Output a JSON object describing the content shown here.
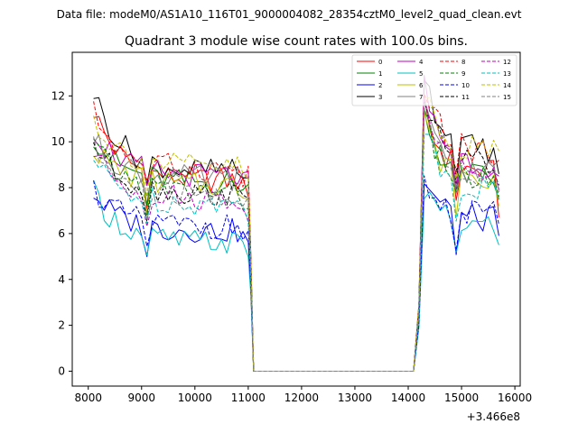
{
  "header": {
    "suptitle": "Data file: modeM0/AS1A10_116T01_9000004082_28354cztM0_level2_quad_clean.evt"
  },
  "chart_data": {
    "type": "line",
    "title": "Quadrant 3 module wise count rates with 100.0s bins.",
    "xlabel": "",
    "ylabel": "",
    "x_offset_label": "+3.466e8",
    "xlim": [
      7700,
      16100
    ],
    "ylim": [
      -0.65,
      13.9
    ],
    "x_ticks": [
      8000,
      9000,
      10000,
      11000,
      12000,
      13000,
      14000,
      15000,
      16000
    ],
    "x_tick_labels": [
      "8000",
      "9000",
      "10000",
      "11000",
      "12000",
      "13000",
      "14000",
      "15000",
      "16000"
    ],
    "y_ticks": [
      0,
      2,
      4,
      6,
      8,
      10,
      12
    ],
    "y_tick_labels": [
      "0",
      "2",
      "4",
      "6",
      "8",
      "10",
      "12"
    ],
    "grid": false,
    "legend_position": "top-right",
    "segments": {
      "seg1_x_start": 8100,
      "seg1_x_end": 11000,
      "drop_x": 11050,
      "zero_x_start": 11100,
      "zero_x_end": 14100,
      "rise_x": 14200,
      "seg2_x_start": 14300,
      "seg2_x_end": 15700,
      "step": 100
    },
    "series": [
      {
        "name": "0",
        "color": "#ff0000",
        "dash": "solid",
        "seg1_level": 8.3,
        "seg1_start": 11.4,
        "seg2_peak": 11.5,
        "seg2_level": 8.6,
        "seg2_end": 6.7,
        "drop_val": 4.4
      },
      {
        "name": "1",
        "color": "#008000",
        "dash": "solid",
        "seg1_level": 8.2,
        "seg1_start": 10.3,
        "seg2_peak": 11.2,
        "seg2_level": 8.4,
        "seg2_end": 7.5,
        "drop_val": 4.2
      },
      {
        "name": "2",
        "color": "#0000ff",
        "dash": "solid",
        "seg1_level": 6.1,
        "seg1_start": 7.8,
        "seg2_peak": 8.4,
        "seg2_level": 6.6,
        "seg2_end": 5.9,
        "drop_val": 3.5
      },
      {
        "name": "3",
        "color": "#000000",
        "dash": "solid",
        "seg1_level": 8.7,
        "seg1_start": 12.2,
        "seg2_peak": 13.1,
        "seg2_level": 9.6,
        "seg2_end": 8.6,
        "drop_val": 5.0
      },
      {
        "name": "4",
        "color": "#bf00bf",
        "dash": "solid",
        "seg1_level": 8.5,
        "seg1_start": 10.6,
        "seg2_peak": 12.5,
        "seg2_level": 9.0,
        "seg2_end": 8.5,
        "drop_val": 4.7
      },
      {
        "name": "5",
        "color": "#00bfbf",
        "dash": "solid",
        "seg1_level": 5.6,
        "seg1_start": 7.8,
        "seg2_peak": 7.9,
        "seg2_level": 6.3,
        "seg2_end": 5.5,
        "drop_val": 3.3
      },
      {
        "name": "6",
        "color": "#bfbf00",
        "dash": "solid",
        "seg1_level": 8.1,
        "seg1_start": 9.8,
        "seg2_peak": 10.9,
        "seg2_level": 8.2,
        "seg2_end": 7.2,
        "drop_val": 4.3
      },
      {
        "name": "7",
        "color": "#808080",
        "dash": "solid",
        "seg1_level": 8.4,
        "seg1_start": 10.1,
        "seg2_peak": 11.4,
        "seg2_level": 8.6,
        "seg2_end": 7.9,
        "drop_val": 4.5
      },
      {
        "name": "8",
        "color": "#ff0000",
        "dash": "dashed",
        "seg1_level": 8.8,
        "seg1_start": 11.3,
        "seg2_peak": 12.6,
        "seg2_level": 9.5,
        "seg2_end": 9.2,
        "drop_val": 4.8
      },
      {
        "name": "9",
        "color": "#008000",
        "dash": "dashed",
        "seg1_level": 7.8,
        "seg1_start": 9.9,
        "seg2_peak": 11.1,
        "seg2_level": 8.3,
        "seg2_end": 7.6,
        "drop_val": 4.1
      },
      {
        "name": "10",
        "color": "#0000ff",
        "dash": "dashed",
        "seg1_level": 6.3,
        "seg1_start": 8.0,
        "seg2_peak": 8.2,
        "seg2_level": 6.8,
        "seg2_end": 6.4,
        "drop_val": 3.6
      },
      {
        "name": "11",
        "color": "#000000",
        "dash": "dashed",
        "seg1_level": 7.7,
        "seg1_start": 10.0,
        "seg2_peak": 12.2,
        "seg2_level": 9.1,
        "seg2_end": 8.1,
        "drop_val": 4.3
      },
      {
        "name": "12",
        "color": "#bf00bf",
        "dash": "dashed",
        "seg1_level": 7.5,
        "seg1_start": 9.6,
        "seg2_peak": 12.0,
        "seg2_level": 8.6,
        "seg2_end": 7.9,
        "drop_val": 4.2
      },
      {
        "name": "13",
        "color": "#00bfbf",
        "dash": "dashed",
        "seg1_level": 7.3,
        "seg1_start": 9.2,
        "seg2_peak": 10.7,
        "seg2_level": 7.9,
        "seg2_end": 7.4,
        "drop_val": 4.0
      },
      {
        "name": "14",
        "color": "#bfbf00",
        "dash": "dashed",
        "seg1_level": 8.9,
        "seg1_start": 11.0,
        "seg2_peak": 12.4,
        "seg2_level": 9.6,
        "seg2_end": 9.6,
        "drop_val": 4.9
      },
      {
        "name": "15",
        "color": "#808080",
        "dash": "dashed",
        "seg1_level": 7.6,
        "seg1_start": 9.7,
        "seg2_peak": 11.6,
        "seg2_level": 8.5,
        "seg2_end": 7.8,
        "drop_val": 4.2
      }
    ]
  }
}
